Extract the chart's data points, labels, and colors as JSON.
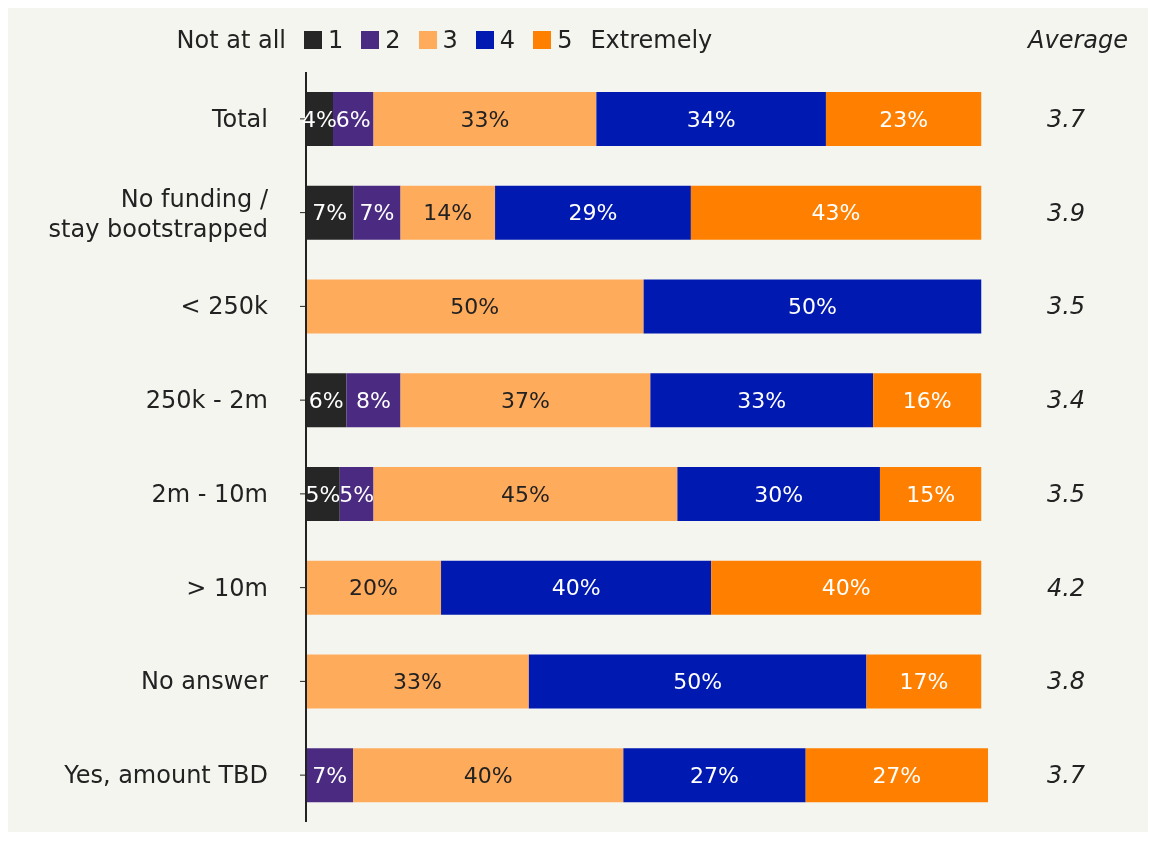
{
  "chart_data": {
    "type": "bar",
    "orientation": "horizontal",
    "stacked": true,
    "legend": "top",
    "grid": false,
    "categories": [
      "Total",
      "No funding / stay bootstrapped",
      "< 250k",
      "250k - 2m",
      "2m - 10m",
      "> 10m",
      "No answer",
      "Yes, amount TBD"
    ],
    "series": [
      {
        "name": "1",
        "color": "#262626",
        "values": [
          4,
          7,
          null,
          6,
          5,
          null,
          null,
          null
        ],
        "value_labels": [
          "4%",
          "7%",
          null,
          "6%",
          "5%",
          null,
          null,
          null
        ]
      },
      {
        "name": "2",
        "color": "#4b2a82",
        "values": [
          6,
          7,
          null,
          8,
          5,
          null,
          null,
          7
        ],
        "value_labels": [
          "6%",
          "7%",
          null,
          "8%",
          "5%",
          null,
          null,
          "7%"
        ]
      },
      {
        "name": "3",
        "color": "#ffab5c",
        "values": [
          33,
          14,
          50,
          37,
          45,
          20,
          33,
          40
        ],
        "value_labels": [
          "33%",
          "14%",
          "50%",
          "37%",
          "45%",
          "20%",
          "33%",
          "40%"
        ]
      },
      {
        "name": "4",
        "color": "#0019b0",
        "values": [
          34,
          29,
          50,
          33,
          30,
          40,
          50,
          27
        ],
        "value_labels": [
          "34%",
          "29%",
          "50%",
          "33%",
          "30%",
          "40%",
          "50%",
          "27%"
        ]
      },
      {
        "name": "5",
        "color": "#ff8000",
        "values": [
          23,
          43,
          null,
          16,
          15,
          40,
          17,
          27
        ],
        "value_labels": [
          "23%",
          "43%",
          null,
          "16%",
          "15%",
          "40%",
          "17%",
          "27%"
        ]
      }
    ],
    "annotations": [
      "Not at all",
      "Extremely",
      "Average",
      "3.7",
      "3.9",
      "3.5",
      "3.4",
      "3.5",
      "4.2",
      "3.8",
      "3.7"
    ]
  }
}
